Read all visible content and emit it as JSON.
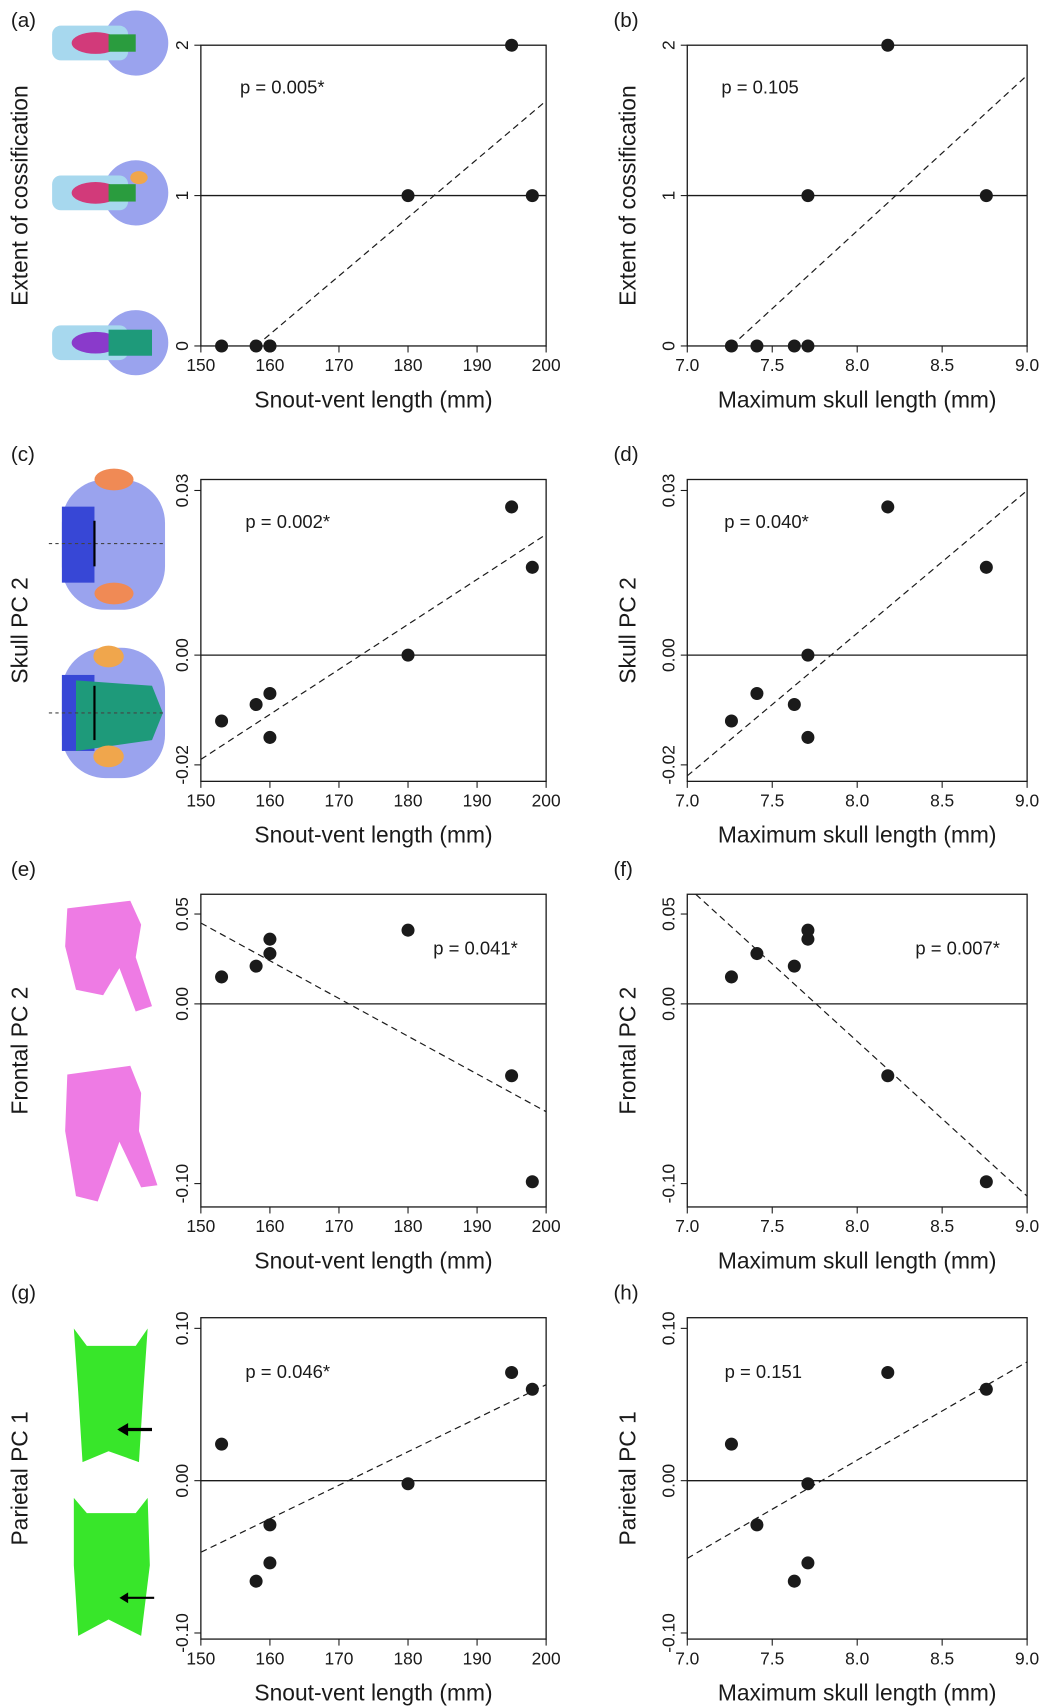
{
  "chart_data": [
    {
      "type": "scatter",
      "panel": "(a)",
      "x_label": "Snout-vent length (mm)",
      "y_label": "Extent of cossification",
      "annotation": "p = 0.005*",
      "x": [
        153,
        158,
        160,
        160,
        180,
        195,
        198
      ],
      "y": [
        0,
        0,
        0,
        0,
        1,
        2,
        1
      ],
      "color": "#1a1a1a",
      "xlim": [
        150,
        200
      ],
      "ylim": [
        0,
        2
      ],
      "xticks": [
        150,
        160,
        170,
        180,
        190,
        200
      ],
      "yticks": [
        0,
        1,
        2
      ],
      "hline": 1,
      "fit": {
        "x": [
          158,
          200
        ],
        "y": [
          0,
          1.63
        ]
      }
    },
    {
      "type": "scatter",
      "panel": "(b)",
      "x_label": "Maximum skull length (mm)",
      "y_label": "Extent of cossification",
      "annotation": "p = 0.105",
      "x": [
        7.26,
        7.41,
        7.63,
        7.71,
        7.71,
        8.18,
        8.76
      ],
      "y": [
        0,
        0,
        0,
        0,
        1,
        2,
        1
      ],
      "color": "#1a1a1a",
      "xlim": [
        7,
        9
      ],
      "ylim": [
        0,
        2
      ],
      "xticks": [
        {
          "value": 7,
          "label": "7.0"
        },
        7.5,
        {
          "value": 8,
          "label": "8.0"
        },
        8.5,
        {
          "value": 9,
          "label": "9.0"
        }
      ],
      "yticks": [
        0,
        1,
        2
      ],
      "hline": 1,
      "fit": {
        "x": [
          7.26,
          9
        ],
        "y": [
          0,
          1.8
        ]
      }
    },
    {
      "type": "scatter",
      "panel": "(c)",
      "x_label": "Snout-vent length (mm)",
      "y_label": "Skull PC 2",
      "annotation": "p = 0.002*",
      "x": [
        153,
        158,
        160,
        160,
        180,
        195,
        198
      ],
      "y": [
        -0.012,
        -0.009,
        -0.007,
        -0.015,
        0,
        0.027,
        0.016
      ],
      "color": "#1a1a1a",
      "xlim": [
        150,
        200
      ],
      "ylim": [
        -0.023,
        0.032
      ],
      "xticks": [
        150,
        160,
        170,
        180,
        190,
        200
      ],
      "yticks": [
        -0.02,
        {
          "value": 0,
          "label": "0.00"
        },
        0.03
      ],
      "hline": 0,
      "fit": {
        "x": [
          150,
          200
        ],
        "y": [
          -0.019,
          0.022
        ]
      }
    },
    {
      "type": "scatter",
      "panel": "(d)",
      "x_label": "Maximum skull length (mm)",
      "y_label": "Skull PC 2",
      "annotation": "p = 0.040*",
      "x": [
        7.26,
        7.41,
        7.63,
        7.71,
        7.71,
        8.18,
        8.76
      ],
      "y": [
        -0.012,
        -0.007,
        -0.009,
        -0.015,
        0,
        0.027,
        0.016
      ],
      "color": "#1a1a1a",
      "xlim": [
        7,
        9
      ],
      "ylim": [
        -0.023,
        0.032
      ],
      "xticks": [
        {
          "value": 7,
          "label": "7.0"
        },
        7.5,
        {
          "value": 8,
          "label": "8.0"
        },
        8.5,
        {
          "value": 9,
          "label": "9.0"
        }
      ],
      "yticks": [
        -0.02,
        {
          "value": 0,
          "label": "0.00"
        },
        0.03
      ],
      "hline": 0,
      "fit": {
        "x": [
          7,
          9
        ],
        "y": [
          -0.022,
          0.03
        ]
      }
    },
    {
      "type": "scatter",
      "panel": "(e)",
      "x_label": "Snout-vent length (mm)",
      "y_label": "Frontal PC 2",
      "annotation": "p = 0.041*",
      "x": [
        153,
        158,
        160,
        160,
        180,
        195,
        198
      ],
      "y": [
        0.015,
        0.021,
        0.036,
        0.028,
        0.041,
        -0.04,
        -0.099
      ],
      "color": "#1a1a1a",
      "xlim": [
        150,
        200
      ],
      "ylim": [
        -0.113,
        0.061
      ],
      "xticks": [
        150,
        160,
        170,
        180,
        190,
        200
      ],
      "yticks": [
        {
          "value": -0.1,
          "label": "-0.10"
        },
        {
          "value": 0,
          "label": "0.00"
        },
        0.05
      ],
      "hline": 0,
      "fit": {
        "x": [
          150,
          200
        ],
        "y": [
          0.045,
          -0.06
        ]
      }
    },
    {
      "type": "scatter",
      "panel": "(f)",
      "x_label": "Maximum skull length (mm)",
      "y_label": "Frontal PC 2",
      "annotation": "p = 0.007*",
      "x": [
        7.26,
        7.41,
        7.63,
        7.71,
        7.71,
        8.18,
        8.76
      ],
      "y": [
        0.015,
        0.028,
        0.021,
        0.036,
        0.041,
        -0.04,
        -0.099
      ],
      "color": "#1a1a1a",
      "xlim": [
        7,
        9
      ],
      "ylim": [
        -0.113,
        0.061
      ],
      "xticks": [
        {
          "value": 7,
          "label": "7.0"
        },
        7.5,
        {
          "value": 8,
          "label": "8.0"
        },
        8.5,
        {
          "value": 9,
          "label": "9.0"
        }
      ],
      "yticks": [
        {
          "value": -0.1,
          "label": "-0.10"
        },
        {
          "value": 0,
          "label": "0.00"
        },
        0.05
      ],
      "hline": 0,
      "fit": {
        "x": [
          7.05,
          9
        ],
        "y": [
          0.061,
          -0.107
        ]
      }
    },
    {
      "type": "scatter",
      "panel": "(g)",
      "x_label": "Snout-vent length (mm)",
      "y_label": "Parietal PC 1",
      "annotation": "p = 0.046*",
      "x": [
        153,
        158,
        160,
        160,
        180,
        195,
        198
      ],
      "y": [
        0.024,
        -0.066,
        -0.029,
        -0.054,
        -0.002,
        0.071,
        0.06
      ],
      "color": "#1a1a1a",
      "xlim": [
        150,
        200
      ],
      "ylim": [
        -0.104,
        0.107
      ],
      "xticks": [
        150,
        160,
        170,
        180,
        190,
        200
      ],
      "yticks": [
        {
          "value": -0.1,
          "label": "-0.10"
        },
        {
          "value": 0,
          "label": "0.00"
        },
        {
          "value": 0.1,
          "label": "0.10"
        }
      ],
      "hline": 0,
      "fit": {
        "x": [
          150,
          200
        ],
        "y": [
          -0.047,
          0.063
        ]
      }
    },
    {
      "type": "scatter",
      "panel": "(h)",
      "x_label": "Maximum skull length (mm)",
      "y_label": "Parietal PC 1",
      "annotation": "p = 0.151",
      "x": [
        7.26,
        7.41,
        7.63,
        7.71,
        7.71,
        8.18,
        8.76
      ],
      "y": [
        0.024,
        -0.029,
        -0.066,
        -0.054,
        -0.002,
        0.071,
        0.06
      ],
      "color": "#1a1a1a",
      "xlim": [
        7,
        9
      ],
      "ylim": [
        -0.104,
        0.107
      ],
      "xticks": [
        {
          "value": 7,
          "label": "7.0"
        },
        7.5,
        {
          "value": 8,
          "label": "8.0"
        },
        8.5,
        {
          "value": 9,
          "label": "9.0"
        }
      ],
      "yticks": [
        {
          "value": -0.1,
          "label": "-0.10"
        },
        {
          "value": 0,
          "label": "0.00"
        },
        {
          "value": 0.1,
          "label": "0.10"
        }
      ],
      "hline": 0,
      "fit": {
        "x": [
          7,
          9
        ],
        "y": [
          -0.051,
          0.078
        ]
      }
    }
  ]
}
